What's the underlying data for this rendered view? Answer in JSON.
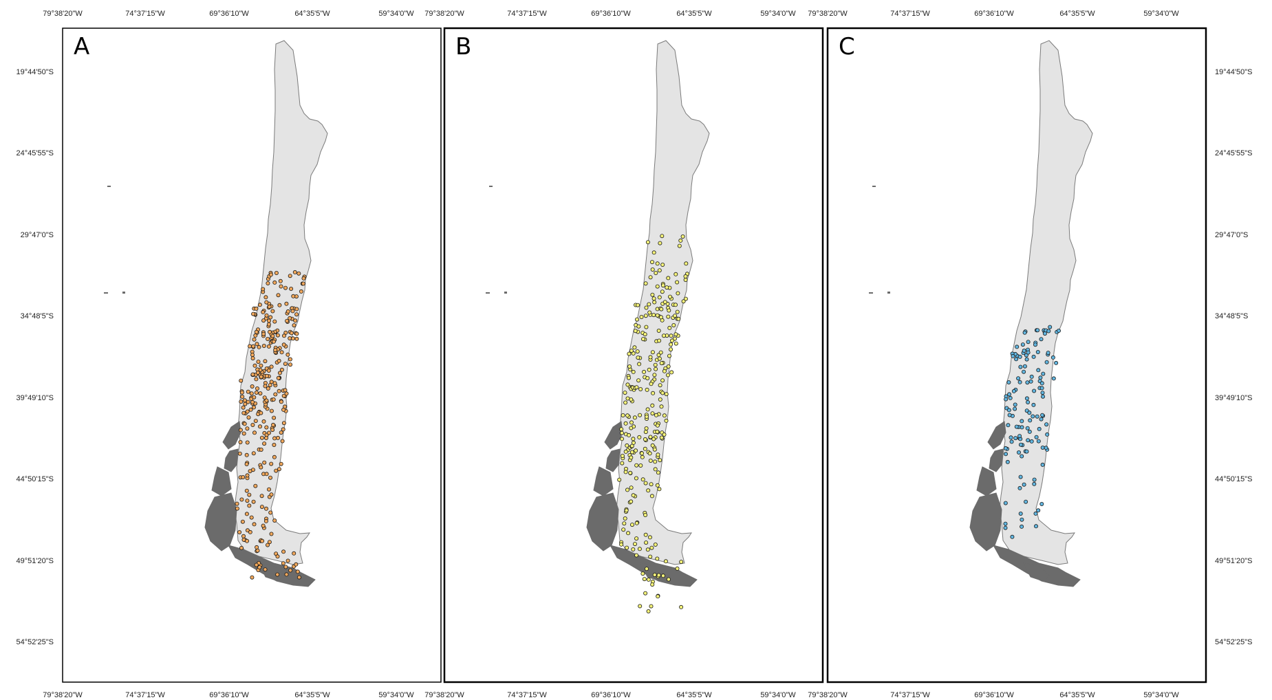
{
  "figure": {
    "panels": [
      {
        "letter": "A",
        "point_color": "#f1a85c",
        "description_key": "orange occurrence points"
      },
      {
        "letter": "B",
        "point_color": "#f5f37a",
        "description_key": "yellow occurrence points"
      },
      {
        "letter": "C",
        "point_color": "#62b6e0",
        "description_key": "blue occurrence points"
      }
    ],
    "x_ticks": [
      "79°38'20\"W",
      "74°37'15\"W",
      "69°36'10\"W",
      "64°35'5\"W",
      "59°34'0\"W"
    ],
    "y_ticks": [
      "19°44'50\"S",
      "24°45'55\"S",
      "29°47'0\"S",
      "34°48'5\"S",
      "39°49'10\"S",
      "44°50'15\"S",
      "49°51'20\"S",
      "54°52'25\"S"
    ],
    "colors": {
      "land_fill": "#e4e4e4",
      "land_outline": "#7a7a7a",
      "islands": "#6b6b6b",
      "point_outline": "#1a1a1a",
      "frame": "#000000"
    }
  }
}
